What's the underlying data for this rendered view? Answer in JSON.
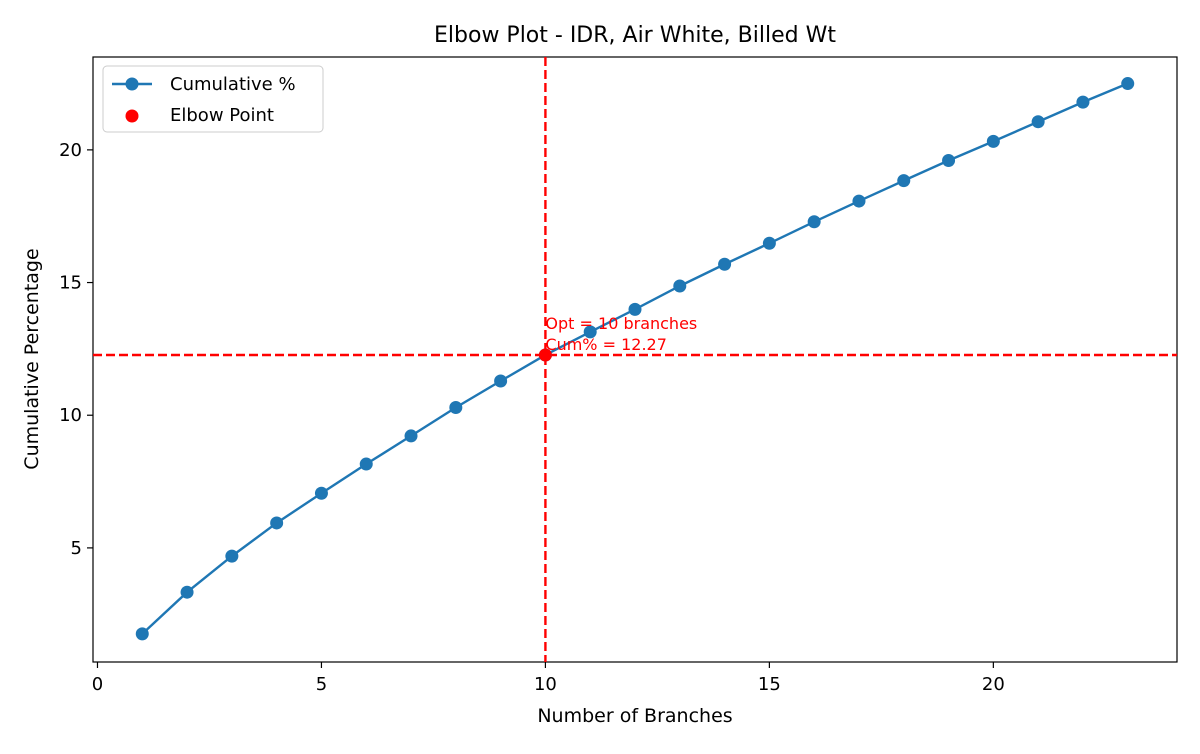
{
  "chart_data": {
    "type": "line",
    "title": "Elbow Plot - IDR, Air White, Billed Wt",
    "xlabel": "Number of Branches",
    "ylabel": "Cumulative Percentage",
    "xlim": [
      -0.1,
      24.1
    ],
    "ylim": [
      0.7,
      23.5
    ],
    "xticks": [
      0,
      5,
      10,
      15,
      20
    ],
    "yticks": [
      5,
      10,
      15,
      20
    ],
    "grid": false,
    "legend_position": "upper-left",
    "series": [
      {
        "name": "Cumulative %",
        "color": "#1f77b4",
        "marker": "circle",
        "x": [
          1,
          2,
          3,
          4,
          5,
          6,
          7,
          8,
          9,
          10,
          11,
          12,
          13,
          14,
          15,
          16,
          17,
          18,
          19,
          20,
          21,
          22,
          23
        ],
        "y": [
          1.76,
          3.33,
          4.69,
          5.94,
          7.06,
          8.16,
          9.22,
          10.29,
          11.29,
          12.27,
          13.14,
          13.99,
          14.87,
          15.69,
          16.48,
          17.29,
          18.07,
          18.84,
          19.6,
          20.32,
          21.06,
          21.8,
          22.5
        ]
      }
    ],
    "elbow": {
      "name": "Elbow Point",
      "color": "#ff0000",
      "x": 10,
      "y": 12.27,
      "annotation_line1": "Opt = 10 branches",
      "annotation_line2": "Cum% = 12.27"
    }
  }
}
